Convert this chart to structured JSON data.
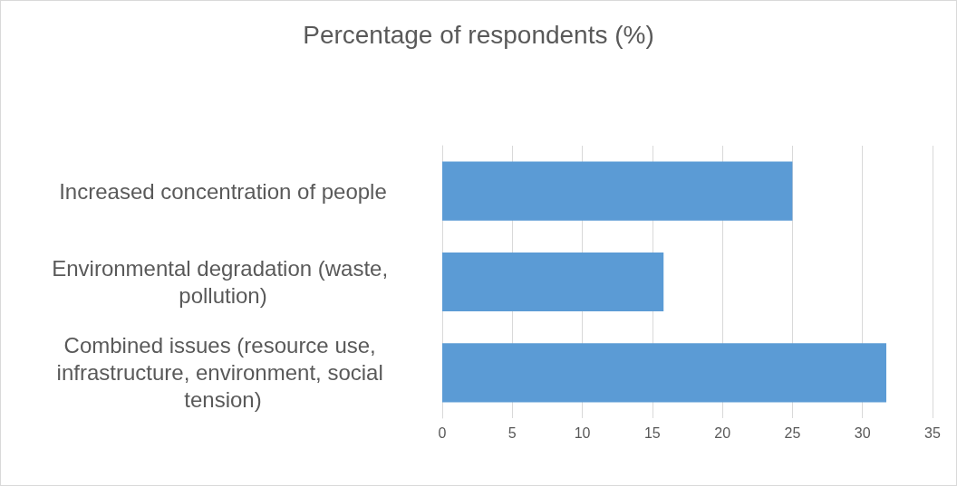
{
  "chart_data": {
    "type": "bar",
    "title": "Percentage of respondents (%)",
    "orientation": "horizontal",
    "categories": [
      "Increased concentration of people",
      "Environmental degradation (waste, pollution)",
      "Combined issues (resource use, infrastructure, environment, social tension)"
    ],
    "values": [
      25,
      15.8,
      31.7
    ],
    "color": "#5b9bd5",
    "xlim": [
      0,
      35
    ],
    "xticks": [
      0,
      5,
      10,
      15,
      20,
      25,
      30,
      35
    ],
    "grid": "x"
  }
}
